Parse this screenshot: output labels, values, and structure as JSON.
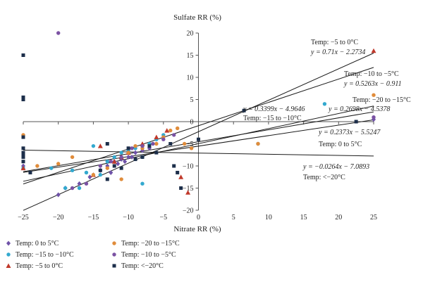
{
  "chart_data": {
    "type": "scatter",
    "xlabel": "Nitrate RR (%)",
    "ylabel": "Sulfate RR (%)",
    "xlim": [
      -25,
      25
    ],
    "ylim": [
      -20,
      20
    ],
    "xticks": [
      -25,
      -20,
      -15,
      -10,
      -5,
      0,
      5,
      10,
      15,
      20,
      25
    ],
    "yticks": [
      -20,
      -15,
      -10,
      -5,
      0,
      5,
      10,
      15,
      20
    ],
    "grid": false,
    "legend_position": "bottom-left",
    "series": [
      {
        "name": "Temp: 0 to 5°C",
        "marker": "diamond",
        "color": "#6f52a8",
        "points": [
          [
            -20,
            -16.5
          ],
          [
            -19,
            -15
          ],
          [
            -17,
            -14
          ],
          [
            -15.5,
            -12.5
          ],
          [
            -14,
            -11
          ],
          [
            -13,
            -10
          ],
          [
            -12,
            -9
          ],
          [
            -11,
            -8.5
          ],
          [
            -10,
            -8
          ],
          [
            -9,
            -7
          ],
          [
            -8,
            -6.5
          ],
          [
            -7,
            -6
          ],
          [
            -12.5,
            -11.5
          ],
          [
            -11.5,
            -9.5
          ],
          [
            -10.5,
            -9
          ],
          [
            -9.5,
            -8
          ],
          [
            25,
            0.5
          ],
          [
            -25,
            -10
          ]
        ]
      },
      {
        "name": "Temp: −15 to −10°C",
        "marker": "circle",
        "color": "#33a9cf",
        "points": [
          [
            -25,
            -10.5
          ],
          [
            -21,
            -10.5
          ],
          [
            -18,
            -11
          ],
          [
            -16,
            -11.5
          ],
          [
            -15,
            -5.5
          ],
          [
            -14,
            -12
          ],
          [
            -13,
            -9
          ],
          [
            -12,
            -8
          ],
          [
            -11,
            -7
          ],
          [
            -10,
            -6.5
          ],
          [
            -9,
            -6
          ],
          [
            -8,
            -8
          ],
          [
            -8,
            -14
          ],
          [
            -7,
            -5
          ],
          [
            -6,
            -4
          ],
          [
            -5,
            -3
          ],
          [
            8.5,
            -5
          ],
          [
            18,
            4
          ],
          [
            -19,
            -15
          ],
          [
            -17,
            -15
          ]
        ]
      },
      {
        "name": "Temp: −5 to 0°C",
        "marker": "triangle",
        "color": "#c0392b",
        "points": [
          [
            -14,
            -5.5
          ],
          [
            -12,
            -9
          ],
          [
            -10,
            -7
          ],
          [
            -8,
            -5
          ],
          [
            -6,
            -3.5
          ],
          [
            -4.5,
            -2
          ],
          [
            -2.5,
            -12.5
          ],
          [
            -1.5,
            -16
          ],
          [
            -15,
            -12
          ],
          [
            -11,
            -8
          ],
          [
            25,
            16
          ],
          [
            -25,
            -10.5
          ]
        ]
      },
      {
        "name": "Temp: −20 to −15°C",
        "marker": "circle",
        "color": "#e08c3b",
        "points": [
          [
            -25,
            -3
          ],
          [
            -23,
            -10
          ],
          [
            -20,
            -9.5
          ],
          [
            -18,
            -8
          ],
          [
            -15,
            -12
          ],
          [
            -13,
            -10.5
          ],
          [
            -11,
            -13
          ],
          [
            -10,
            -7
          ],
          [
            -9,
            -5.5
          ],
          [
            -8,
            -6
          ],
          [
            -6,
            -5
          ],
          [
            -5,
            -3.5
          ],
          [
            -4,
            -2
          ],
          [
            -3,
            -1.5
          ],
          [
            -2,
            -5
          ],
          [
            -1,
            -6
          ],
          [
            8.5,
            -5
          ],
          [
            25,
            6
          ]
        ]
      },
      {
        "name": "Temp: −10 to −5°C",
        "marker": "circle",
        "color": "#7b52a3",
        "points": [
          [
            -20,
            20
          ],
          [
            -16,
            -14
          ],
          [
            -14,
            -10
          ],
          [
            -12.5,
            -9
          ],
          [
            -11,
            -8
          ],
          [
            -9.5,
            -6
          ],
          [
            -8,
            -5.5
          ],
          [
            -6.5,
            -5
          ],
          [
            -5,
            -4
          ],
          [
            -3.5,
            -3
          ],
          [
            -18,
            -15
          ],
          [
            25,
            1
          ]
        ]
      },
      {
        "name": "Temp: <−20°C",
        "marker": "square",
        "color": "#1c2e4a",
        "points": [
          [
            -25,
            15
          ],
          [
            -25,
            5.5
          ],
          [
            -25,
            5
          ],
          [
            -25,
            -3.5
          ],
          [
            -25,
            -6
          ],
          [
            -25,
            -7
          ],
          [
            -25,
            -7.5
          ],
          [
            -25,
            -8
          ],
          [
            -25,
            -9
          ],
          [
            -24,
            -11.5
          ],
          [
            -13,
            -5
          ],
          [
            -12,
            -10
          ],
          [
            -11,
            -10.5
          ],
          [
            -10,
            -6
          ],
          [
            -9,
            -8.5
          ],
          [
            -8,
            -8
          ],
          [
            -7,
            -5.5
          ],
          [
            -6,
            -7
          ],
          [
            -4,
            -5
          ],
          [
            -3.5,
            -10
          ],
          [
            -3,
            -11.5
          ],
          [
            -2.5,
            -15
          ],
          [
            0,
            -4
          ],
          [
            6.5,
            2.5
          ],
          [
            22.5,
            0
          ],
          [
            -13,
            -13
          ],
          [
            -14,
            -11
          ]
        ]
      }
    ],
    "trendlines": [
      {
        "label": "Temp: −5 to 0°C",
        "equation": "y = 0.71x − 2.2734",
        "slope": 0.71,
        "intercept": -2.2734
      },
      {
        "label": "Temp: −10 to −5°C",
        "equation": "y = 0.5263x − 0.911",
        "slope": 0.5263,
        "intercept": -0.911
      },
      {
        "label": "Temp: −20 to −15°C",
        "equation": "y = 0.2698x − 4.5378",
        "slope": 0.2698,
        "intercept": -4.5378
      },
      {
        "label": "Temp: −15 to −10°C",
        "equation": "y = 0.3399x − 4.9646",
        "slope": 0.3399,
        "intercept": -4.9646
      },
      {
        "label": "Temp: 0 to 5°C",
        "equation": "y = 0.2373x − 5.5247",
        "slope": 0.2373,
        "intercept": -5.5247
      },
      {
        "label": "Temp: <−20°C",
        "equation": "y = −0.0264x − 7.0893",
        "slope": -0.0264,
        "intercept": -7.0893
      }
    ]
  }
}
